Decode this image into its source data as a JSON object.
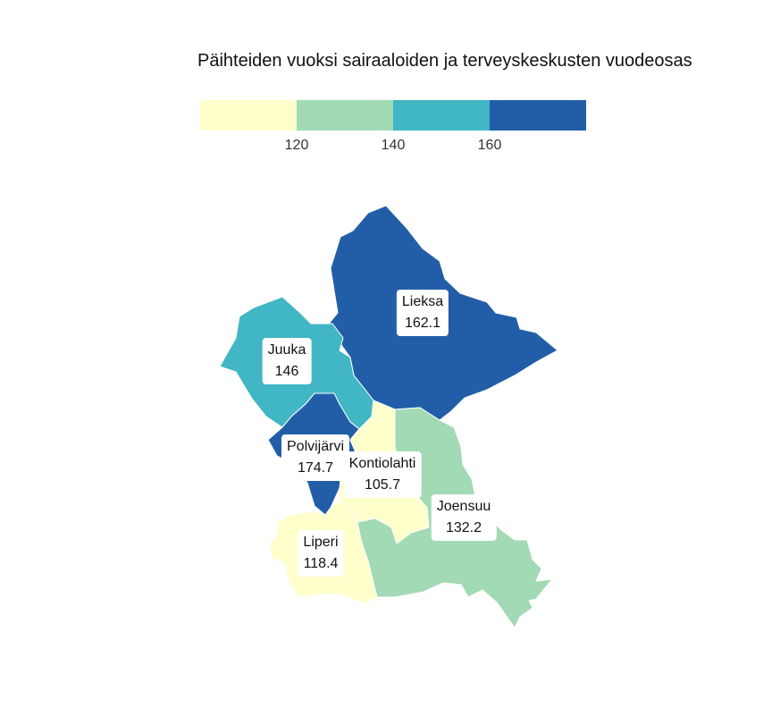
{
  "title": "Päihteiden vuoksi sairaaloiden ja terveyskeskusten vuodeosas",
  "legend": {
    "colors": [
      "#ffffcc",
      "#a1dab4",
      "#41b6c4",
      "#225ea8"
    ],
    "breaks": [
      "120",
      "140",
      "160"
    ]
  },
  "regions": [
    {
      "name": "Lieksa",
      "value": "162.1",
      "color": "#225ea8"
    },
    {
      "name": "Juuka",
      "value": "146",
      "color": "#41b6c4"
    },
    {
      "name": "Polvijärvi",
      "value": "174.7",
      "color": "#225ea8"
    },
    {
      "name": "Kontiolahti",
      "value": "105.7",
      "color": "#ffffcc"
    },
    {
      "name": "Joensuu",
      "value": "132.2",
      "color": "#a1dab4"
    },
    {
      "name": "Liperi",
      "value": "118.4",
      "color": "#ffffcc"
    }
  ]
}
